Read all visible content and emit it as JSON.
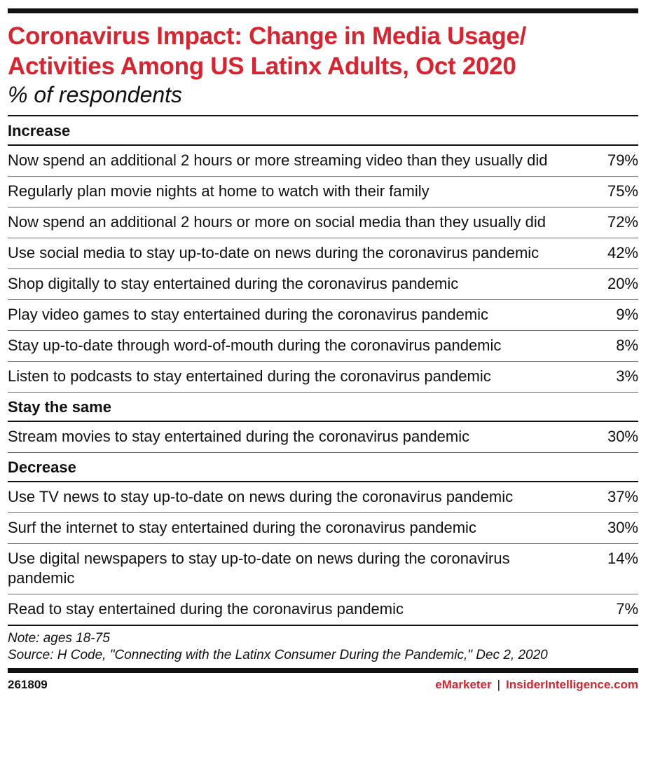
{
  "header": {
    "title_line1": "Coronavirus Impact: Change in Media Usage/",
    "title_line2": "Activities Among US Latinx Adults, Oct 2020",
    "subtitle": "% of respondents"
  },
  "chart_data": {
    "type": "table",
    "title": "Coronavirus Impact: Change in Media Usage/ Activities Among US Latinx Adults, Oct 2020",
    "subtitle": "% of respondents",
    "sections": [
      {
        "name": "Increase",
        "rows": [
          {
            "label": "Now spend an additional 2 hours or more streaming video than they usually did",
            "value": "79%"
          },
          {
            "label": "Regularly plan movie nights at home to watch with their family",
            "value": "75%"
          },
          {
            "label": "Now spend an additional 2 hours or more on social media than they usually did",
            "value": "72%"
          },
          {
            "label": "Use social media to stay up-to-date on news during the coronavirus pandemic",
            "value": "42%"
          },
          {
            "label": "Shop digitally to stay entertained during the coronavirus pandemic",
            "value": "20%"
          },
          {
            "label": "Play video games to stay entertained during the coronavirus pandemic",
            "value": "9%"
          },
          {
            "label": "Stay up-to-date through word-of-mouth during the coronavirus pandemic",
            "value": "8%"
          },
          {
            "label": "Listen to podcasts to stay entertained during the coronavirus pandemic",
            "value": "3%"
          }
        ]
      },
      {
        "name": "Stay the same",
        "rows": [
          {
            "label": "Stream movies to stay entertained during the coronavirus pandemic",
            "value": "30%"
          }
        ]
      },
      {
        "name": "Decrease",
        "rows": [
          {
            "label": "Use TV news to stay up-to-date on news during the coronavirus pandemic",
            "value": "37%"
          },
          {
            "label": "Surf the internet to stay entertained during the coronavirus pandemic",
            "value": "30%"
          },
          {
            "label": "Use digital newspapers to stay up-to-date on news during the coronavirus pandemic",
            "value": "14%"
          },
          {
            "label": "Read to stay entertained during the coronavirus pandemic",
            "value": "7%"
          }
        ]
      }
    ]
  },
  "notes": {
    "note": "Note: ages 18-75",
    "source": "Source: H Code, \"Connecting with the Latinx Consumer During the Pandemic,\" Dec 2, 2020"
  },
  "footer": {
    "id": "261809",
    "brand_left": "eMarketer",
    "separator": "|",
    "brand_right": "InsiderIntelligence.com"
  },
  "colors": {
    "accent": "#d9232e",
    "rule": "#111111"
  }
}
